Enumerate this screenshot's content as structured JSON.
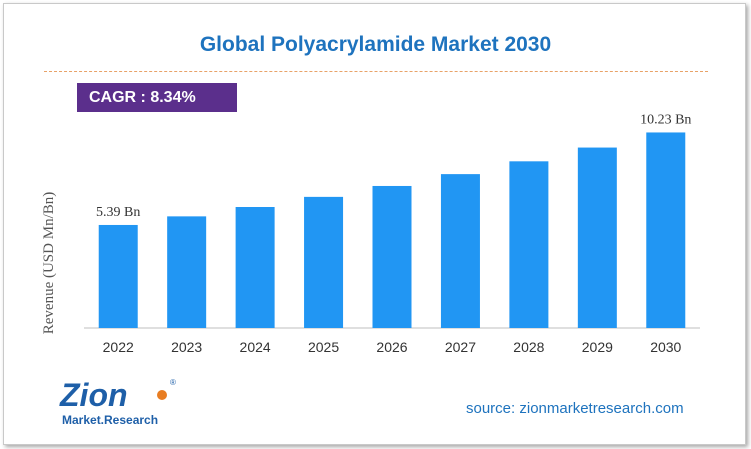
{
  "title": "Global Polyacrylamide Market 2030",
  "cagr": "CAGR : 8.34%",
  "source": "source: zionmarketresearch.com",
  "logo": {
    "word1": "Zion",
    "word2": "Market.Research",
    "mark": "®"
  },
  "colors": {
    "bar": "#2196f3",
    "title": "#1e73be",
    "cagr_bg": "#5b2f8c",
    "divider": "#e8a268"
  },
  "chart_data": {
    "type": "bar",
    "categories": [
      "2022",
      "2023",
      "2024",
      "2025",
      "2026",
      "2027",
      "2028",
      "2029",
      "2030"
    ],
    "values": [
      5.39,
      5.84,
      6.33,
      6.86,
      7.43,
      8.05,
      8.72,
      9.44,
      10.23
    ],
    "data_labels": [
      {
        "index": 0,
        "text": "5.39 Bn"
      },
      {
        "index": 8,
        "text": "10.23 Bn"
      }
    ],
    "ylabel": "Revenue (USD Mn/Bn)",
    "xlabel": "",
    "ylim": [
      0,
      11.3
    ],
    "grid": false,
    "legend": "none"
  }
}
